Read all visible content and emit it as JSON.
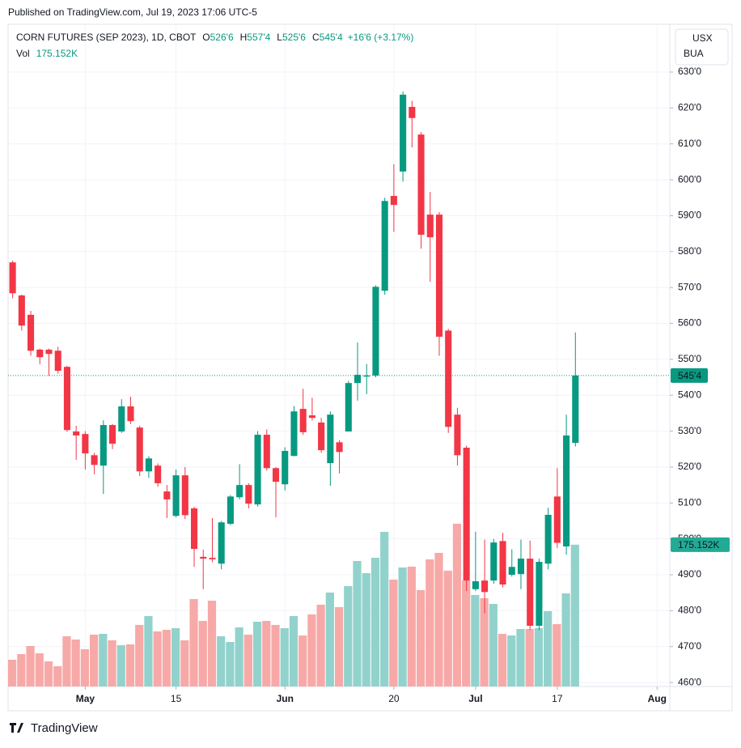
{
  "published": "Published on TradingView.com, Jul 19, 2023 17:06 UTC-5",
  "footer": "TradingView",
  "chart_data": {
    "type": "candlestick",
    "header": {
      "symbol": "CORN FUTURES (SEP 2023), 1D, CBOT",
      "open_label": "O",
      "open": "526'6",
      "high_label": "H",
      "high": "557'4",
      "low_label": "L",
      "low": "525'6",
      "close_label": "C",
      "close": "545'4",
      "change": "+16'6 (+3.17%)",
      "vol_label": "Vol",
      "vol": "175.152K"
    },
    "currency": [
      "USX",
      "BUA"
    ],
    "last_price_label": "545'4",
    "last_volume_label": "175.152K",
    "up_color": "#089981",
    "down_color": "#f23645",
    "up_volume_color": "#92d2cc",
    "down_volume_color": "#f7a9a7",
    "grid": true,
    "xlim": [
      -0.5,
      72.4
    ],
    "xticks": [
      {
        "value": 8,
        "label": "May"
      },
      {
        "value": 18,
        "label": "15"
      },
      {
        "value": 30,
        "label": "Jun"
      },
      {
        "value": 42,
        "label": "20"
      },
      {
        "value": 51,
        "label": "Jul"
      },
      {
        "value": 60,
        "label": "17"
      },
      {
        "value": 71,
        "label": "Aug"
      }
    ],
    "ylim": [
      458.9,
      643.3
    ],
    "yticks": [
      {
        "value": 460,
        "label": "460'0"
      },
      {
        "value": 470,
        "label": "470'0"
      },
      {
        "value": 480,
        "label": "480'0"
      },
      {
        "value": 490,
        "label": "490'0"
      },
      {
        "value": 500,
        "label": "500'0"
      },
      {
        "value": 510,
        "label": "510'0"
      },
      {
        "value": 520,
        "label": "520'0"
      },
      {
        "value": 530,
        "label": "530'0"
      },
      {
        "value": 540,
        "label": "540'0"
      },
      {
        "value": 550,
        "label": "550'0"
      },
      {
        "value": 560,
        "label": "560'0"
      },
      {
        "value": 570,
        "label": "570'0"
      },
      {
        "value": 580,
        "label": "580'0"
      },
      {
        "value": 590,
        "label": "590'0"
      },
      {
        "value": 600,
        "label": "600'0"
      },
      {
        "value": 610,
        "label": "610'0"
      },
      {
        "value": 620,
        "label": "620'0"
      },
      {
        "value": 630,
        "label": "630'0"
      }
    ],
    "open": [
      577,
      567.8,
      562.4,
      552.7,
      552.7,
      552.4,
      547.9,
      529.9,
      529.2,
      523.3,
      520.4,
      531.7,
      529.9,
      536.9,
      531,
      518.8,
      520.4,
      513.2,
      506.4,
      517.7,
      508.5,
      495,
      494.7,
      493.1,
      504.2,
      511.6,
      515,
      509.6,
      529,
      519.7,
      515.2,
      523.1,
      536.2,
      534.4,
      532.4,
      521.1,
      526.9,
      529.9,
      543.4,
      545.2,
      545.5,
      569.1,
      595.5,
      602.3,
      620.3,
      612.6,
      590.3,
      590.3,
      558,
      534.6,
      525.4,
      486,
      488.4,
      488.4,
      499.4,
      490,
      490.2,
      494.5,
      475.8,
      493.1,
      511.8,
      497.9,
      526.75
    ],
    "high": [
      577.5,
      568,
      563.5,
      553,
      553,
      553.5,
      548.2,
      531.5,
      530,
      524,
      533,
      532,
      538.9,
      539.6,
      531.5,
      523,
      521,
      515,
      519.3,
      520,
      509,
      497,
      505.8,
      505,
      512.2,
      520.8,
      515.5,
      530,
      530.5,
      520,
      525.5,
      537,
      541.8,
      539.3,
      533.7,
      535.5,
      527.5,
      544,
      554.7,
      548.7,
      570.6,
      595,
      604.3,
      624.6,
      622,
      613.3,
      596.6,
      591,
      558.5,
      536.5,
      526,
      502,
      499.8,
      500,
      501.7,
      497.1,
      499.8,
      499.5,
      494.5,
      508.7,
      519.7,
      534.6,
      557.5
    ],
    "low": [
      567,
      558,
      551,
      548.6,
      545.4,
      546,
      529.8,
      522,
      519.3,
      518,
      512.5,
      525,
      529.5,
      532,
      517.5,
      517,
      514.5,
      505.8,
      506,
      505.5,
      492.2,
      486,
      493.5,
      491.5,
      503.8,
      511,
      508.5,
      509,
      519,
      506,
      513.5,
      523,
      529,
      533,
      524,
      514.8,
      518.2,
      529.9,
      538.5,
      540.3,
      545,
      568,
      585.5,
      599.5,
      609,
      580.8,
      571.6,
      551,
      529.5,
      520.4,
      485.5,
      485.5,
      479.3,
      487.5,
      486.5,
      489.5,
      486,
      474.6,
      474.6,
      491.5,
      497.5,
      495.6,
      525.75
    ],
    "close": [
      568.4,
      559.4,
      552.4,
      550.6,
      551.5,
      546.8,
      530.3,
      528.8,
      523.8,
      520.6,
      531.7,
      526.5,
      536.9,
      532.8,
      518.8,
      522.4,
      515.5,
      511,
      517.7,
      506.6,
      497.2,
      494.5,
      494.3,
      504.6,
      511.8,
      515,
      509.8,
      529,
      519.7,
      515.9,
      524.5,
      535.5,
      529.7,
      533.7,
      524.7,
      534.6,
      524.2,
      543.4,
      545.7,
      545.5,
      570.2,
      594.1,
      593,
      623.7,
      617.2,
      584.7,
      584,
      556.3,
      531.2,
      523.3,
      488.4,
      488.2,
      485.2,
      499,
      487.3,
      492.2,
      494.5,
      475.8,
      493.6,
      506.7,
      498.9,
      528.8,
      545.5
    ],
    "volume": [
      33,
      40,
      50,
      41,
      31,
      25,
      62,
      58,
      46,
      64,
      65,
      57,
      51,
      52,
      76,
      87,
      68,
      70,
      72,
      57,
      108,
      81,
      106,
      62,
      55,
      73,
      64,
      80,
      81,
      76,
      72,
      87,
      63,
      89,
      101,
      116,
      98,
      124,
      155,
      140,
      159,
      191,
      132,
      147,
      148,
      119,
      157,
      165,
      143,
      201,
      131,
      113,
      109,
      102,
      65,
      63,
      71,
      71,
      72,
      93,
      77,
      115,
      175.152
    ]
  }
}
